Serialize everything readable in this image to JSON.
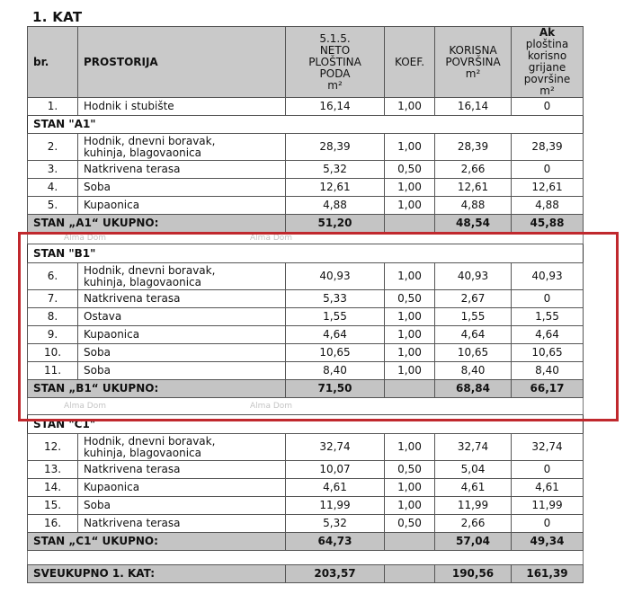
{
  "title": "1. KAT",
  "watermark": "Alma Dom",
  "highlight_color": "#c0282d",
  "columns": [
    "br.",
    "PROSTORIJA",
    "5.1.5. NETO PLOŠTINA PODA m²",
    "KOEF.",
    "KORISNA POVRŠINA m²",
    "Ak ploština korisno grijane površine m²"
  ],
  "header": {
    "br": "br.",
    "prostorija": "PROSTORIJA",
    "neto_lines": [
      "5.1.5.",
      "NETO",
      "PLOŠTINA",
      "PODA",
      "m²"
    ],
    "koef": "KOEF.",
    "korisna_lines": [
      "KORISNA",
      "POVRŠINA",
      "m²"
    ],
    "ak_bold": "Ak",
    "ak_lines": [
      " ploština",
      "korisno",
      "grijane",
      "površine",
      "m²"
    ]
  },
  "rows": [
    {
      "kind": "item",
      "br": "1.",
      "name": "Hodnik i stubište",
      "neto": "16,14",
      "koef": "1,00",
      "korisna": "16,14",
      "ak": "0"
    },
    {
      "kind": "section",
      "label": "STAN \"A1\""
    },
    {
      "kind": "item2",
      "br": "2.",
      "name": "Hodnik, dnevni boravak,",
      "name2": "kuhinja, blagovaonica",
      "neto": "28,39",
      "koef": "1,00",
      "korisna": "28,39",
      "ak": "28,39"
    },
    {
      "kind": "item",
      "br": "3.",
      "name": "Natkrivena terasa",
      "neto": "5,32",
      "koef": "0,50",
      "korisna": "2,66",
      "ak": "0"
    },
    {
      "kind": "item",
      "br": "4.",
      "name": "Soba",
      "neto": "12,61",
      "koef": "1,00",
      "korisna": "12,61",
      "ak": "12,61"
    },
    {
      "kind": "item",
      "br": "5.",
      "name": "Kupaonica",
      "neto": "4,88",
      "koef": "1,00",
      "korisna": "4,88",
      "ak": "4,88"
    },
    {
      "kind": "total",
      "label": "STAN „A1“ UKUPNO:",
      "neto": "51,20",
      "korisna": "48,54",
      "ak": "45,88"
    },
    {
      "kind": "gap"
    },
    {
      "kind": "section",
      "label": "STAN \"B1\""
    },
    {
      "kind": "item2",
      "br": "6.",
      "name": "Hodnik, dnevni boravak,",
      "name2": "kuhinja, blagovaonica",
      "neto": "40,93",
      "koef": "1,00",
      "korisna": "40,93",
      "ak": "40,93"
    },
    {
      "kind": "item",
      "br": "7.",
      "name": "Natkrivena terasa",
      "neto": "5,33",
      "koef": "0,50",
      "korisna": "2,67",
      "ak": "0"
    },
    {
      "kind": "item",
      "br": "8.",
      "name": "Ostava",
      "neto": "1,55",
      "koef": "1,00",
      "korisna": "1,55",
      "ak": "1,55"
    },
    {
      "kind": "item",
      "br": "9.",
      "name": "Kupaonica",
      "neto": "4,64",
      "koef": "1,00",
      "korisna": "4,64",
      "ak": "4,64"
    },
    {
      "kind": "item",
      "br": "10.",
      "name": "Soba",
      "neto": "10,65",
      "koef": "1,00",
      "korisna": "10,65",
      "ak": "10,65"
    },
    {
      "kind": "item",
      "br": "11.",
      "name": "Soba",
      "neto": "8,40",
      "koef": "1,00",
      "korisna": "8,40",
      "ak": "8,40"
    },
    {
      "kind": "total",
      "label": "STAN „B1“ UKUPNO:",
      "neto": "71,50",
      "korisna": "68,84",
      "ak": "66,17"
    },
    {
      "kind": "gap"
    },
    {
      "kind": "section",
      "label": "STAN \"C1\""
    },
    {
      "kind": "item2",
      "br": "12.",
      "name": "Hodnik, dnevni boravak,",
      "name2": "kuhinja, blagovaonica",
      "neto": "32,74",
      "koef": "1,00",
      "korisna": "32,74",
      "ak": "32,74"
    },
    {
      "kind": "item",
      "br": "13.",
      "name": "Natkrivena terasa",
      "neto": "10,07",
      "koef": "0,50",
      "korisna": "5,04",
      "ak": "0"
    },
    {
      "kind": "item",
      "br": "14.",
      "name": "Kupaonica",
      "neto": "4,61",
      "koef": "1,00",
      "korisna": "4,61",
      "ak": "4,61"
    },
    {
      "kind": "item",
      "br": "15.",
      "name": "Soba",
      "neto": "11,99",
      "koef": "1,00",
      "korisna": "11,99",
      "ak": "11,99"
    },
    {
      "kind": "item",
      "br": "16.",
      "name": "Natkrivena terasa",
      "neto": "5,32",
      "koef": "0,50",
      "korisna": "2,66",
      "ak": "0"
    },
    {
      "kind": "total",
      "label": "STAN „C1“ UKUPNO:",
      "neto": "64,73",
      "korisna": "57,04",
      "ak": "49,34"
    },
    {
      "kind": "gap"
    },
    {
      "kind": "total",
      "label": "SVEUKUPNO 1. KAT:",
      "neto": "203,57",
      "korisna": "190,56",
      "ak": "161,39"
    }
  ]
}
